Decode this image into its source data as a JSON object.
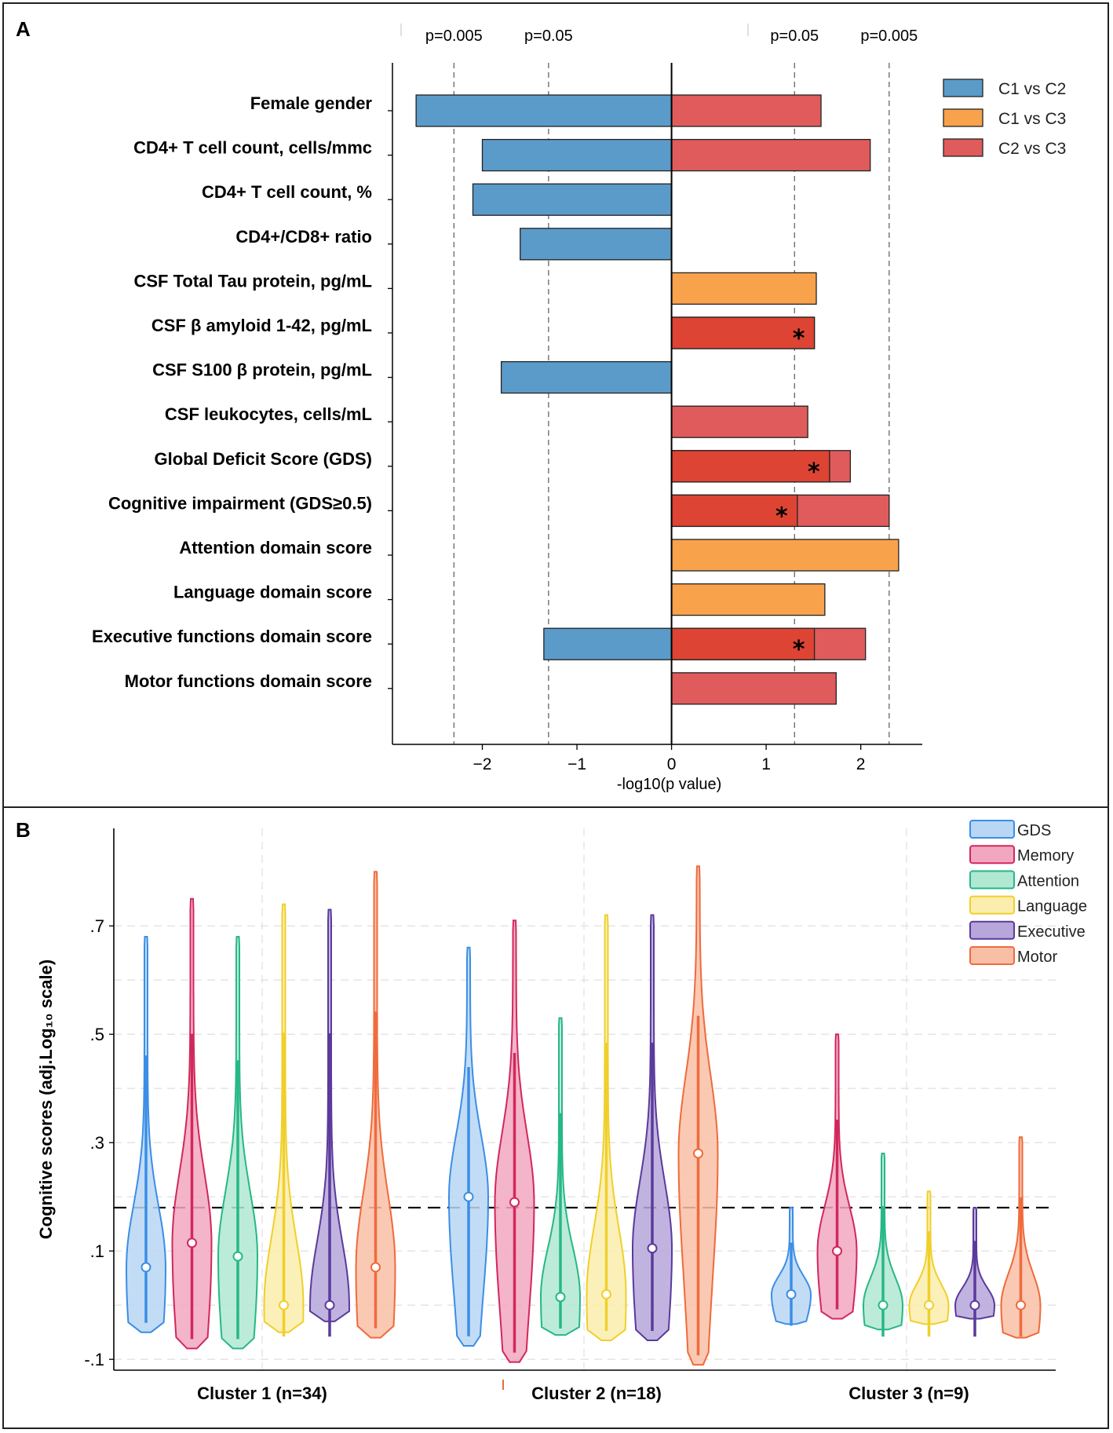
{
  "panel_a": {
    "letter": "A"
  },
  "panel_b": {
    "letter": "B"
  },
  "chart_data": [
    {
      "type": "bar",
      "orientation": "horizontal",
      "xlabel": "-log10(p value)",
      "xlim": [
        -2.95,
        2.65
      ],
      "xticks": [
        -2,
        -1,
        0,
        1,
        2
      ],
      "xtick_labels": [
        "−2",
        "−1",
        "0",
        "1",
        "2"
      ],
      "reference_lines": [
        {
          "label": "p=0.005",
          "value": -2.3
        },
        {
          "label": "p=0.05",
          "value": -1.3
        },
        {
          "label": "p=0.05",
          "value": 1.3
        },
        {
          "label": "p=0.005",
          "value": 2.3
        }
      ],
      "legend": [
        {
          "name": "C1 vs C2",
          "color": "#5b9bc9"
        },
        {
          "name": "C1 vs C3",
          "color": "#f9a24c"
        },
        {
          "name": "C2 vs C3",
          "color": "#e05b5b"
        }
      ],
      "significant_color": "#dd4433",
      "categories": [
        "Female gender",
        "CD4+ T cell count, cells/mmc",
        "CD4+ T cell count, %",
        "CD4+/CD8+ ratio",
        "CSF Total Tau protein, pg/mL",
        "CSF β amyloid 1-42, pg/mL",
        "CSF S100 β protein, pg/mL",
        "CSF leukocytes, cells/mL",
        "Global Deficit Score (GDS)",
        "Cognitive impairment (GDS≥0.5)",
        "Attention domain score",
        "Language domain score",
        "Executive functions domain score",
        "Motor functions domain score"
      ],
      "series": [
        {
          "name": "C1 vs C2",
          "values": [
            -2.7,
            -2.0,
            -2.1,
            -1.6,
            null,
            null,
            -1.8,
            null,
            null,
            null,
            null,
            null,
            -1.35,
            null
          ]
        },
        {
          "name": "C1 vs C3",
          "values": [
            null,
            null,
            null,
            null,
            1.53,
            null,
            null,
            null,
            null,
            null,
            2.4,
            1.62,
            null,
            null
          ]
        },
        {
          "name": "C2 vs C3",
          "values": [
            1.58,
            2.1,
            null,
            null,
            null,
            1.51,
            null,
            1.44,
            1.89,
            2.3,
            null,
            null,
            2.05,
            1.74
          ]
        }
      ],
      "significant_overlays": [
        {
          "category": "CSF β amyloid 1-42, pg/mL",
          "value": 1.51,
          "marker": "*"
        },
        {
          "category": "Global Deficit Score (GDS)",
          "value": 1.67,
          "marker": "*"
        },
        {
          "category": "Cognitive impairment (GDS≥0.5)",
          "value": 1.33,
          "marker": "*"
        },
        {
          "category": "Executive functions domain score",
          "value": 1.51,
          "marker": "*"
        }
      ]
    },
    {
      "type": "violin",
      "ylabel": "Cognitive scores (adj.Log₁₀ scale)",
      "ylim": [
        -0.12,
        0.88
      ],
      "yticks": [
        -0.1,
        0.1,
        0.3,
        0.5,
        0.7
      ],
      "ytick_labels": [
        "-.1",
        ".1",
        ".3",
        ".5",
        ".7"
      ],
      "threshold_line": 0.18,
      "groups": [
        "Cluster 1 (n=34)",
        "Cluster 2 (n=18)",
        "Cluster 3 (n=9)"
      ],
      "legend": [
        {
          "name": "GDS",
          "stroke": "#3a8ee6",
          "fill": "#b9d6f5"
        },
        {
          "name": "Memory",
          "stroke": "#d1285c",
          "fill": "#f2a7c0"
        },
        {
          "name": "Attention",
          "stroke": "#26b885",
          "fill": "#b0e8d2"
        },
        {
          "name": "Language",
          "stroke": "#f0cf2a",
          "fill": "#fbedad"
        },
        {
          "name": "Executive",
          "stroke": "#5a3a9c",
          "fill": "#b6a6d9"
        },
        {
          "name": "Motor",
          "stroke": "#f06a3c",
          "fill": "#f9bfa6"
        }
      ],
      "violins": [
        {
          "group": "Cluster 1 (n=34)",
          "measure": "GDS",
          "min": -0.05,
          "max": 0.68,
          "median": 0.07
        },
        {
          "group": "Cluster 1 (n=34)",
          "measure": "Memory",
          "min": -0.08,
          "max": 0.75,
          "median": 0.115
        },
        {
          "group": "Cluster 1 (n=34)",
          "measure": "Attention",
          "min": -0.08,
          "max": 0.68,
          "median": 0.09
        },
        {
          "group": "Cluster 1 (n=34)",
          "measure": "Language",
          "min": -0.05,
          "max": 0.74,
          "median": 0.0
        },
        {
          "group": "Cluster 1 (n=34)",
          "measure": "Executive",
          "min": -0.03,
          "max": 0.73,
          "median": 0.0
        },
        {
          "group": "Cluster 1 (n=34)",
          "measure": "Motor",
          "min": -0.06,
          "max": 0.8,
          "median": 0.07
        },
        {
          "group": "Cluster 2 (n=18)",
          "measure": "GDS",
          "min": -0.075,
          "max": 0.66,
          "median": 0.2
        },
        {
          "group": "Cluster 2 (n=18)",
          "measure": "Memory",
          "min": -0.105,
          "max": 0.71,
          "median": 0.19
        },
        {
          "group": "Cluster 2 (n=18)",
          "measure": "Attention",
          "min": -0.055,
          "max": 0.53,
          "median": 0.015
        },
        {
          "group": "Cluster 2 (n=18)",
          "measure": "Language",
          "min": -0.065,
          "max": 0.72,
          "median": 0.02
        },
        {
          "group": "Cluster 2 (n=18)",
          "measure": "Executive",
          "min": -0.065,
          "max": 0.72,
          "median": 0.105
        },
        {
          "group": "Cluster 2 (n=18)",
          "measure": "Motor",
          "min": -0.11,
          "max": 0.81,
          "median": 0.28
        },
        {
          "group": "Cluster 3 (n=9)",
          "measure": "GDS",
          "min": -0.035,
          "max": 0.18,
          "median": 0.02
        },
        {
          "group": "Cluster 3 (n=9)",
          "measure": "Memory",
          "min": -0.025,
          "max": 0.5,
          "median": 0.1
        },
        {
          "group": "Cluster 3 (n=9)",
          "measure": "Attention",
          "min": -0.045,
          "max": 0.28,
          "median": 0.0
        },
        {
          "group": "Cluster 3 (n=9)",
          "measure": "Language",
          "min": -0.035,
          "max": 0.21,
          "median": 0.0
        },
        {
          "group": "Cluster 3 (n=9)",
          "measure": "Executive",
          "min": -0.025,
          "max": 0.18,
          "median": 0.0
        },
        {
          "group": "Cluster 3 (n=9)",
          "measure": "Motor",
          "min": -0.06,
          "max": 0.31,
          "median": 0.0
        }
      ]
    }
  ]
}
